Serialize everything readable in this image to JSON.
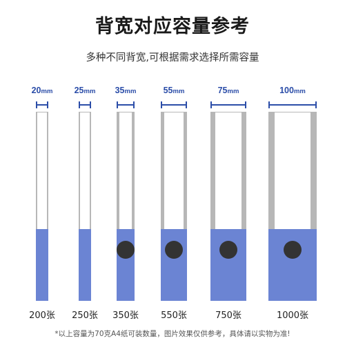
{
  "header": {
    "title": "背宽对应容量参考",
    "subtitle": "多种不同背宽,可根据需求选择所需容量"
  },
  "colors": {
    "accent": "#2b4da8",
    "spine_fill": "#6b84d3",
    "outline": "#b7b7b7",
    "hole": "#333333"
  },
  "binders": [
    {
      "width_value": "20",
      "width_unit": "mm",
      "capacity": "200张",
      "ring_hole": false
    },
    {
      "width_value": "25",
      "width_unit": "mm",
      "capacity": "250张",
      "ring_hole": false
    },
    {
      "width_value": "35",
      "width_unit": "mm",
      "capacity": "350张",
      "ring_hole": true
    },
    {
      "width_value": "55",
      "width_unit": "mm",
      "capacity": "550张",
      "ring_hole": true
    },
    {
      "width_value": "75",
      "width_unit": "mm",
      "capacity": "750张",
      "ring_hole": true
    },
    {
      "width_value": "100",
      "width_unit": "mm",
      "capacity": "1000张",
      "ring_hole": true
    }
  ],
  "footnote": "*以上容量为70克A4纸可装数量，图片效果仅供参考，具体请以实物为准!"
}
